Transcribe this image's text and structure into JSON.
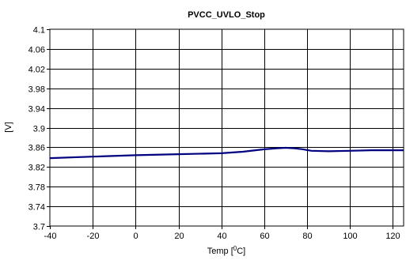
{
  "chart_data": {
    "type": "line",
    "title": "PVCC_UVLO_Stop",
    "xlabel": "Temp [",
    "xlabel_sup": "0",
    "xlabel_end": "C]",
    "ylabel": "[V]",
    "xlim": [
      -40,
      125
    ],
    "ylim": [
      3.7,
      4.1
    ],
    "x_ticks": [
      -40,
      -20,
      0,
      20,
      40,
      60,
      80,
      100,
      120
    ],
    "y_ticks": [
      "3.7",
      "3.74",
      "3.78",
      "3.82",
      "3.86",
      "3.9",
      "3.94",
      "3.98",
      "4.02",
      "4.06",
      "4.1"
    ],
    "grid": true,
    "line_color": "#000080",
    "series": [
      {
        "x": [
          -40,
          -20,
          0,
          20,
          40,
          50,
          60,
          66,
          70,
          74,
          78,
          82,
          90,
          100,
          110,
          125
        ],
        "values": [
          3.838,
          3.841,
          3.844,
          3.846,
          3.848,
          3.851,
          3.856,
          3.858,
          3.859,
          3.858,
          3.856,
          3.853,
          3.852,
          3.853,
          3.854,
          3.854
        ]
      }
    ]
  }
}
